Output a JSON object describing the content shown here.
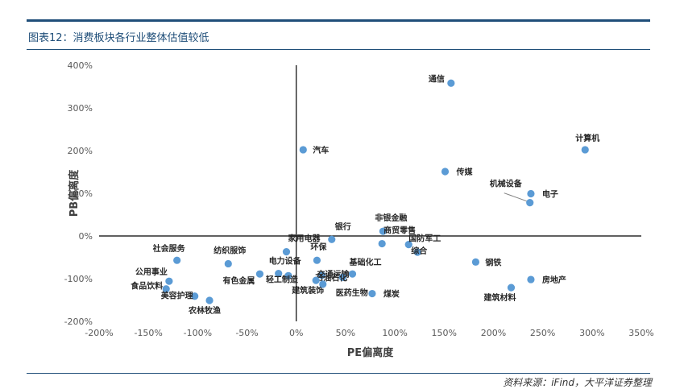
{
  "figure": {
    "title": "图表12：消费板块各行业整体估值较低",
    "source": "资料来源：iFind，大平洋证券整理"
  },
  "colors": {
    "accent": "#1f4e79",
    "point": "#5b9bd5",
    "axis": "#000000",
    "tick_text": "#595959"
  },
  "chart_data": {
    "type": "scatter",
    "title": "",
    "xlabel": "PE偏离度",
    "ylabel": "PB偏离度",
    "xlim": [
      -200,
      350
    ],
    "ylim": [
      -200,
      400
    ],
    "x_ticks": [
      -200,
      -150,
      -100,
      -50,
      0,
      50,
      100,
      150,
      200,
      250,
      300,
      350
    ],
    "y_ticks": [
      -200,
      -100,
      0,
      100,
      200,
      300,
      400
    ],
    "x_tick_labels": [
      "-200%",
      "-150%",
      "-100%",
      "-50%",
      "0%",
      "50%",
      "100%",
      "150%",
      "200%",
      "250%",
      "300%",
      "350%"
    ],
    "y_tick_labels": [
      "-200%",
      "-100%",
      "0%",
      "100%",
      "200%",
      "300%",
      "400%"
    ],
    "unit": "%",
    "grid": false,
    "points": [
      {
        "label": "通信",
        "x": 157,
        "y": 358
      },
      {
        "label": "计算机",
        "x": 293,
        "y": 202
      },
      {
        "label": "汽车",
        "x": 7,
        "y": 202
      },
      {
        "label": "传媒",
        "x": 151,
        "y": 151
      },
      {
        "label": "机械设备",
        "x": 237,
        "y": 78
      },
      {
        "label": "电子",
        "x": 238,
        "y": 99
      },
      {
        "label": "非银金融",
        "x": 88,
        "y": 11
      },
      {
        "label": "商贸零售",
        "x": 87,
        "y": -18
      },
      {
        "label": "国防军工",
        "x": 114,
        "y": -20
      },
      {
        "label": "综合",
        "x": 123,
        "y": -38
      },
      {
        "label": "银行",
        "x": 36,
        "y": -8
      },
      {
        "label": "家用电器",
        "x": -10,
        "y": -37
      },
      {
        "label": "环保",
        "x": 21,
        "y": -57
      },
      {
        "label": "纺织服饰",
        "x": -69,
        "y": -65
      },
      {
        "label": "社会服务",
        "x": -121,
        "y": -57
      },
      {
        "label": "钢铁",
        "x": 182,
        "y": -61
      },
      {
        "label": "基础化工",
        "x": 57,
        "y": -89
      },
      {
        "label": "电力设备",
        "x": -18,
        "y": -88
      },
      {
        "label": "交通运输",
        "x": 26,
        "y": -92
      },
      {
        "label": "石油石化",
        "x": 47,
        "y": -97
      },
      {
        "label": "有色金属",
        "x": -37,
        "y": -89
      },
      {
        "label": "轻工制造",
        "x": -8,
        "y": -93
      },
      {
        "label": "公用事业",
        "x": -129,
        "y": -106
      },
      {
        "label": "建筑装饰",
        "x": 20,
        "y": -104
      },
      {
        "label": "医药生物",
        "x": 27,
        "y": -113
      },
      {
        "label": "房地产",
        "x": 238,
        "y": -102
      },
      {
        "label": "食品饮料",
        "x": -132,
        "y": -124
      },
      {
        "label": "建筑材料",
        "x": 218,
        "y": -121
      },
      {
        "label": "煤炭",
        "x": 77,
        "y": -135
      },
      {
        "label": "美容护理",
        "x": -103,
        "y": -141
      },
      {
        "label": "农林牧渔",
        "x": -88,
        "y": -151
      }
    ]
  }
}
